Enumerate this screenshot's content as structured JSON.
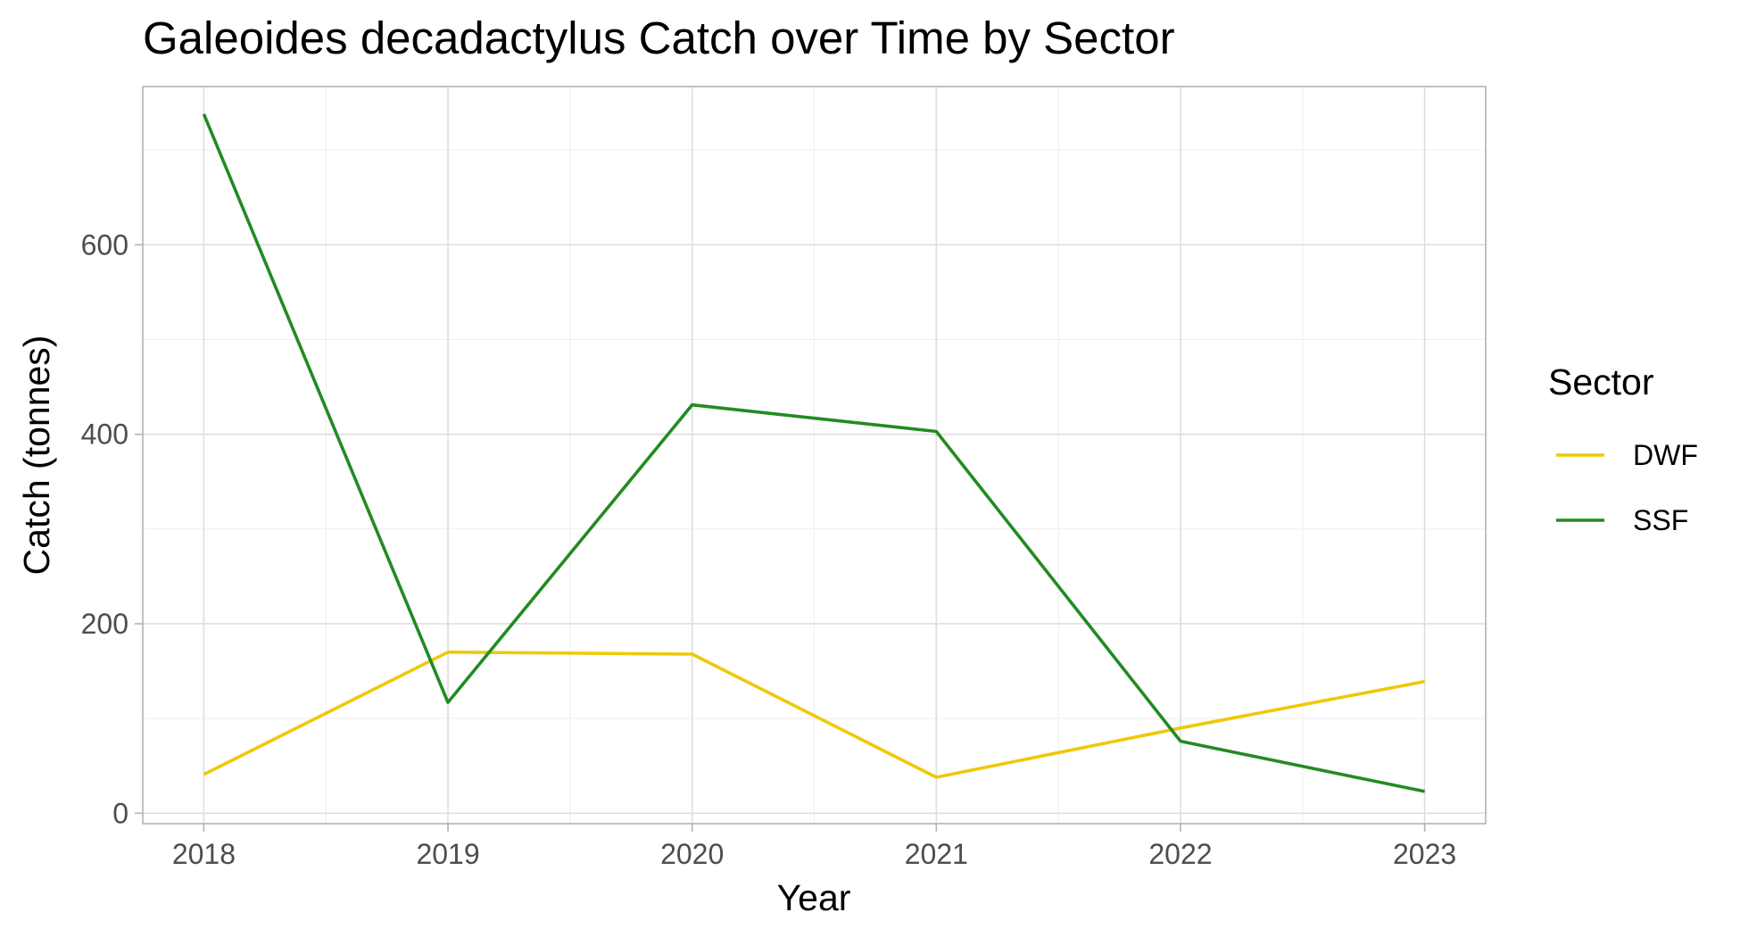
{
  "chart_data": {
    "type": "line",
    "title": "Galeoides decadactylus Catch over Time by Sector",
    "xlabel": "Year",
    "ylabel": "Catch (tonnes)",
    "x": [
      2018,
      2019,
      2020,
      2021,
      2022,
      2023
    ],
    "x_ticks": [
      "2018",
      "2019",
      "2020",
      "2021",
      "2022",
      "2023"
    ],
    "y_ticks": [
      "0",
      "200",
      "400",
      "600"
    ],
    "xlim": [
      2017.75,
      2023.25
    ],
    "ylim": [
      -11,
      767
    ],
    "grid": true,
    "legend": {
      "title": "Sector",
      "position": "right"
    },
    "series": [
      {
        "name": "DWF",
        "color": "#f0c808",
        "values": [
          41,
          170,
          168,
          38,
          90,
          139
        ]
      },
      {
        "name": "SSF",
        "color": "#228b22",
        "values": [
          738,
          117,
          431,
          403,
          76,
          23
        ]
      }
    ]
  }
}
